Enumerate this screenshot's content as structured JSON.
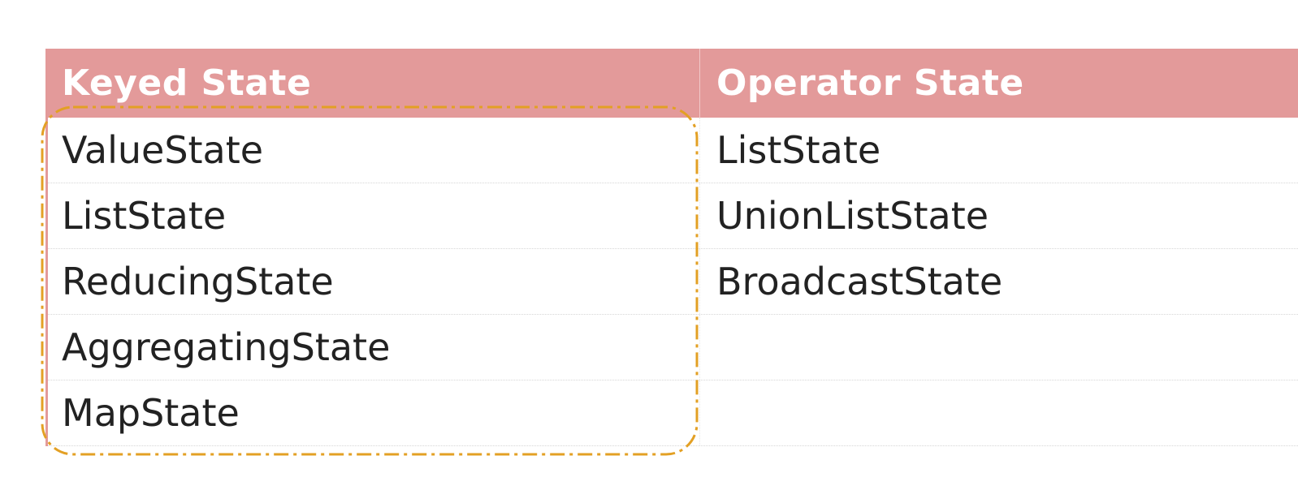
{
  "table": {
    "headers": [
      "Keyed State",
      "Operator State"
    ],
    "rows": [
      [
        "ValueState",
        "ListState"
      ],
      [
        "ListState",
        "UnionListState"
      ],
      [
        "ReducingState",
        "BroadcastState"
      ],
      [
        "AggregatingState",
        ""
      ],
      [
        "MapState",
        ""
      ]
    ]
  },
  "colors": {
    "header_background": "#e39a9a",
    "header_text": "#ffffff",
    "body_text": "#222222",
    "highlight_outline": "#e3a024"
  }
}
